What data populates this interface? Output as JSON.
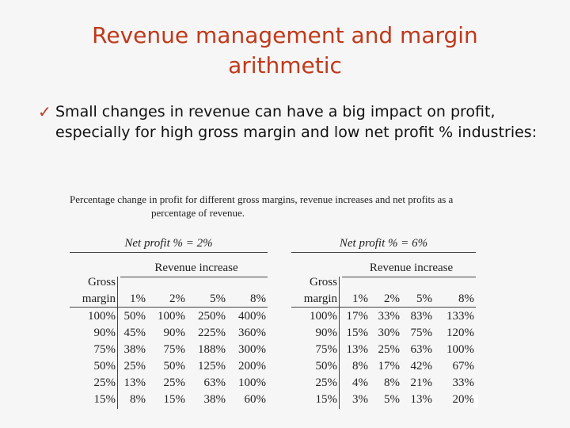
{
  "slide": {
    "title_line1": "Revenue management and margin",
    "title_line2": "arithmetic",
    "bullet_icon": "checkmark-icon",
    "bullet_text": "Small changes in revenue can have a big impact on profit, especially for high gross margin and low net profit % industries:",
    "title_color": "#c0391b"
  },
  "figure": {
    "caption_line1": "Percentage change in profit for different gross margins, revenue increases and net profits as a",
    "caption_line2": "percentage of revenue.",
    "tables": [
      {
        "net_profit_label": "Net profit % = 2%",
        "revenue_increase_label": "Revenue increase",
        "row_header_line1": "Gross",
        "row_header_line2": "margin",
        "columns": [
          "1%",
          "2%",
          "5%",
          "8%"
        ],
        "rows": [
          {
            "margin": "100%",
            "values": [
              "50%",
              "100%",
              "250%",
              "400%"
            ]
          },
          {
            "margin": "90%",
            "values": [
              "45%",
              "90%",
              "225%",
              "360%"
            ]
          },
          {
            "margin": "75%",
            "values": [
              "38%",
              "75%",
              "188%",
              "300%"
            ]
          },
          {
            "margin": "50%",
            "values": [
              "25%",
              "50%",
              "125%",
              "200%"
            ]
          },
          {
            "margin": "25%",
            "values": [
              "13%",
              "25%",
              "63%",
              "100%"
            ]
          },
          {
            "margin": "15%",
            "values": [
              "8%",
              "15%",
              "38%",
              "60%"
            ]
          }
        ]
      },
      {
        "net_profit_label": "Net profit % = 6%",
        "revenue_increase_label": "Revenue increase",
        "row_header_line1": "Gross",
        "row_header_line2": "margin",
        "columns": [
          "1%",
          "2%",
          "5%",
          "8%"
        ],
        "rows": [
          {
            "margin": "100%",
            "values": [
              "17%",
              "33%",
              "83%",
              "133%"
            ]
          },
          {
            "margin": "90%",
            "values": [
              "15%",
              "30%",
              "75%",
              "120%"
            ]
          },
          {
            "margin": "75%",
            "values": [
              "13%",
              "25%",
              "63%",
              "100%"
            ]
          },
          {
            "margin": "50%",
            "values": [
              "8%",
              "17%",
              "42%",
              "67%"
            ]
          },
          {
            "margin": "25%",
            "values": [
              "4%",
              "8%",
              "21%",
              "33%"
            ]
          },
          {
            "margin": "15%",
            "values": [
              "3%",
              "5%",
              "13%",
              "20%"
            ]
          }
        ]
      }
    ]
  }
}
